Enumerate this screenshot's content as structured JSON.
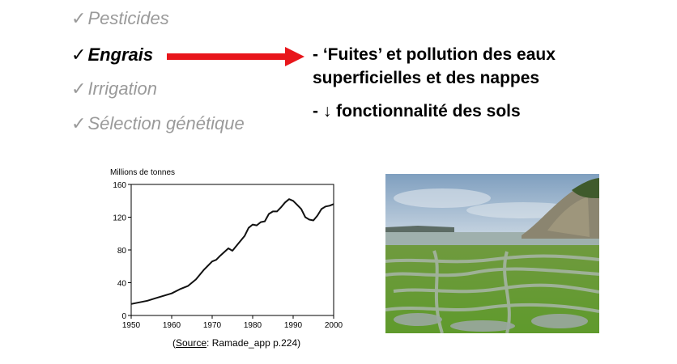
{
  "list": {
    "check": "✓",
    "items": [
      {
        "label": "Pesticides"
      },
      {
        "label": "Engrais"
      },
      {
        "label": "Irrigation"
      },
      {
        "label": "Sélection génétique"
      }
    ]
  },
  "effects": {
    "line1": "- ‘Fuites’ et pollution des eaux",
    "line2": "superficielles et des nappes",
    "line3": "- ↓ fonctionnalité des sols"
  },
  "caption": {
    "open": "(",
    "source_word": "Source",
    "rest": ": Ramade_app p.224)"
  },
  "colors": {
    "arrow": "#e8161b",
    "muted_text": "#9a9a9a"
  },
  "chart_data": {
    "type": "line",
    "ylabel": "Millions de tonnes",
    "xlabel": "",
    "xlim": [
      1950,
      2000
    ],
    "ylim": [
      0,
      160
    ],
    "x_ticks": [
      1950,
      1960,
      1970,
      1980,
      1990,
      2000
    ],
    "y_ticks": [
      0,
      40,
      80,
      120,
      160
    ],
    "series": [
      {
        "x": [
          1950,
          1952,
          1954,
          1956,
          1958,
          1960,
          1962,
          1964,
          1966,
          1968,
          1970,
          1971,
          1972,
          1974,
          1975,
          1976,
          1978,
          1979,
          1980,
          1981,
          1982,
          1983,
          1984,
          1985,
          1986,
          1987,
          1988,
          1989,
          1990,
          1991,
          1992,
          1993,
          1994,
          1995,
          1996,
          1997,
          1998,
          1999,
          2000
        ],
        "y": [
          14,
          16,
          18,
          21,
          24,
          27,
          32,
          36,
          44,
          56,
          66,
          68,
          73,
          82,
          79,
          85,
          97,
          107,
          111,
          110,
          114,
          115,
          124,
          127,
          127,
          132,
          138,
          142,
          140,
          135,
          130,
          120,
          117,
          116,
          122,
          130,
          133,
          134,
          136
        ]
      }
    ]
  }
}
